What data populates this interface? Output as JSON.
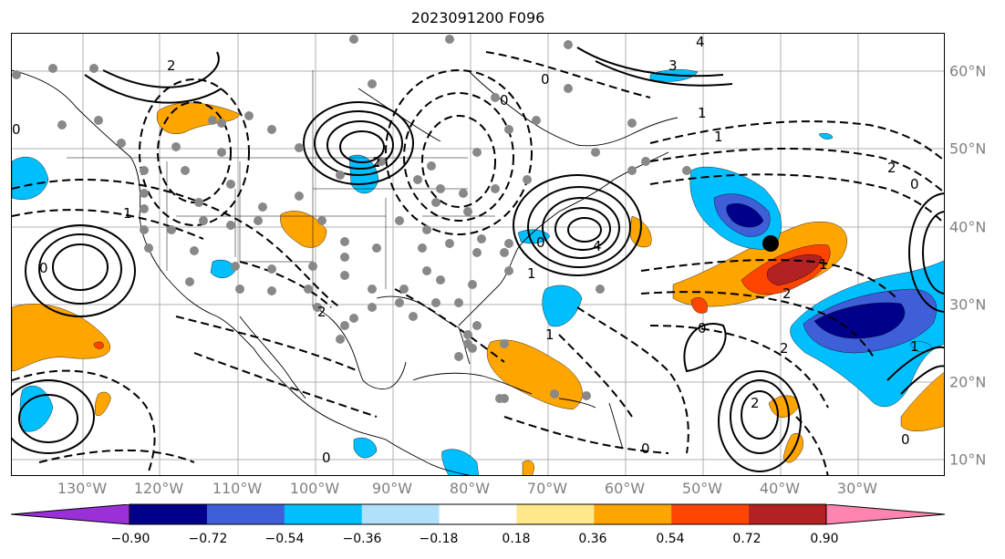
{
  "title": "2023091200 F096",
  "lon_labels": [
    "130°W",
    "120°W",
    "110°W",
    "100°W",
    "90°W",
    "80°W",
    "70°W",
    "60°W",
    "50°W",
    "40°W",
    "30°W"
  ],
  "lat_labels": [
    "60°N",
    "50°N",
    "40°N",
    "30°N",
    "20°N",
    "10°N"
  ],
  "colorbar": {
    "ticks": [
      "−0.90",
      "−0.72",
      "−0.54",
      "−0.36",
      "−0.18",
      "0.18",
      "0.36",
      "0.54",
      "0.72",
      "0.90"
    ],
    "colors": [
      "#9b30d9",
      "#00008b",
      "#3f5fd8",
      "#00bfff",
      "#b0e0fa",
      "#ffffff",
      "#ffe88a",
      "#ffa500",
      "#ff4500",
      "#b22222",
      "#ff85b0"
    ]
  },
  "contour_labels": [
    "0",
    "2",
    "1",
    "0",
    "3",
    "0",
    "4",
    "1",
    "0",
    "2",
    "4",
    "1",
    "0",
    "1",
    "2",
    "0",
    "1",
    "2",
    "0",
    "2",
    "0",
    "1",
    "2",
    "0",
    "1",
    "2",
    "0"
  ],
  "shading_colors": {
    "orange": "#ffa500",
    "red": "#ff4500",
    "darkred": "#b22222",
    "lightblue": "#00bfff",
    "medblue": "#3f5fd8",
    "navy": "#00008b"
  }
}
